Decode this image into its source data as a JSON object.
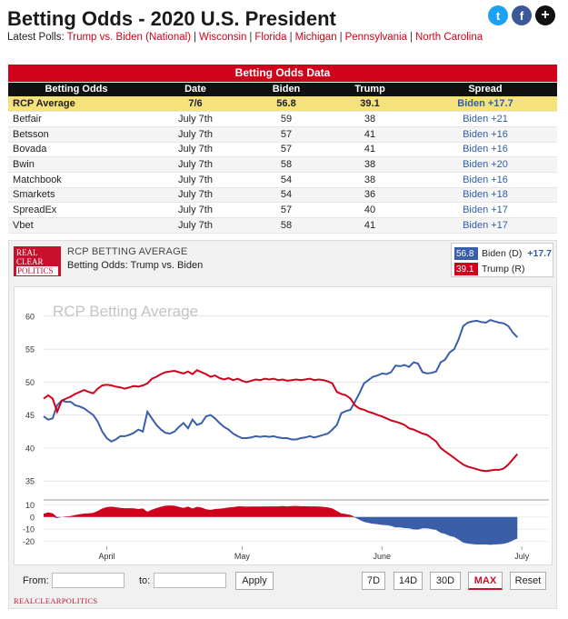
{
  "header": {
    "title": "Betting Odds - 2020 U.S. President",
    "latest_label": "Latest Polls:",
    "links": [
      "Trump vs. Biden (National)",
      "Wisconsin",
      "Florida",
      "Michigan",
      "Pennsylvania",
      "North Carolina"
    ],
    "social": [
      {
        "icon": "twitter-icon",
        "glyph": "t"
      },
      {
        "icon": "facebook-icon",
        "glyph": "f"
      },
      {
        "icon": "plus-icon",
        "glyph": "+"
      }
    ]
  },
  "table": {
    "caption": "Betting Odds Data",
    "headers": [
      "Betting Odds",
      "Date",
      "Biden",
      "Trump",
      "Spread"
    ],
    "average": {
      "source": "RCP Average",
      "date": "7/6",
      "biden": "56.8",
      "trump": "39.1",
      "spread": "Biden +17.7"
    },
    "rows": [
      {
        "source": "Betfair",
        "date": "July 7th",
        "biden": "59",
        "trump": "38",
        "spread": "Biden +21"
      },
      {
        "source": "Betsson",
        "date": "July 7th",
        "biden": "57",
        "trump": "41",
        "spread": "Biden +16"
      },
      {
        "source": "Bovada",
        "date": "July 7th",
        "biden": "57",
        "trump": "41",
        "spread": "Biden +16"
      },
      {
        "source": "Bwin",
        "date": "July 7th",
        "biden": "58",
        "trump": "38",
        "spread": "Biden +20"
      },
      {
        "source": "Matchbook",
        "date": "July 7th",
        "biden": "54",
        "trump": "38",
        "spread": "Biden +16"
      },
      {
        "source": "Smarkets",
        "date": "July 7th",
        "biden": "54",
        "trump": "36",
        "spread": "Biden +18"
      },
      {
        "source": "SpreadEx",
        "date": "July 7th",
        "biden": "57",
        "trump": "40",
        "spread": "Biden +17"
      },
      {
        "source": "Vbet",
        "date": "July 7th",
        "biden": "58",
        "trump": "41",
        "spread": "Biden +17"
      }
    ]
  },
  "panel": {
    "logo_line1": "REAL",
    "logo_line2": "CLEAR",
    "logo_line3": "POLITICS",
    "subtitle": "RCP BETTING AVERAGE",
    "title": "Betting Odds: Trump vs. Biden",
    "legend": [
      {
        "value": "56.8",
        "name": "Biden (D)",
        "spread": "+17.7",
        "color": "#3a5ea8"
      },
      {
        "value": "39.1",
        "name": "Trump (R)",
        "spread": "",
        "color": "#d0021b"
      }
    ],
    "watermark": "RCP Betting Average",
    "footer_brand": "REALCLEARPOLITICS"
  },
  "controls": {
    "from_label": "From:",
    "to_label": "to:",
    "apply_label": "Apply",
    "ranges": [
      "7D",
      "14D",
      "30D",
      "MAX"
    ],
    "active_range": "MAX",
    "reset_label": "Reset"
  },
  "chart_data": {
    "type": "line",
    "x_ticks": [
      "April",
      "May",
      "June",
      "July"
    ],
    "x_tick_pos": [
      14,
      44,
      75,
      106
    ],
    "y_ticks": [
      35,
      40,
      45,
      50,
      55,
      60
    ],
    "ylim": [
      32,
      63
    ],
    "spread_ticks": [
      10,
      0,
      -10,
      -20
    ],
    "spread_ylim": [
      -24,
      11
    ],
    "xlim": [
      0,
      112
    ],
    "series": [
      {
        "name": "Biden (D)",
        "color": "#3a5ea8",
        "points": [
          [
            0,
            44.8
          ],
          [
            1,
            44.3
          ],
          [
            2,
            44.5
          ],
          [
            3,
            46.5
          ],
          [
            4,
            47.2
          ],
          [
            5,
            47.0
          ],
          [
            6,
            47.0
          ],
          [
            7,
            46.5
          ],
          [
            8,
            46.3
          ],
          [
            9,
            46.0
          ],
          [
            10,
            45.5
          ],
          [
            11,
            45.0
          ],
          [
            12,
            44.0
          ],
          [
            13,
            42.5
          ],
          [
            14,
            41.5
          ],
          [
            15,
            41.0
          ],
          [
            16,
            41.3
          ],
          [
            17,
            41.8
          ],
          [
            18,
            41.8
          ],
          [
            19,
            42.0
          ],
          [
            20,
            42.3
          ],
          [
            21,
            42.8
          ],
          [
            22,
            42.5
          ],
          [
            23,
            45.5
          ],
          [
            24,
            44.5
          ],
          [
            25,
            43.5
          ],
          [
            26,
            42.8
          ],
          [
            27,
            42.3
          ],
          [
            28,
            42.2
          ],
          [
            29,
            42.5
          ],
          [
            30,
            43.2
          ],
          [
            31,
            43.8
          ],
          [
            32,
            43.0
          ],
          [
            33,
            44.3
          ],
          [
            34,
            43.5
          ],
          [
            35,
            43.8
          ],
          [
            36,
            44.8
          ],
          [
            37,
            45.0
          ],
          [
            38,
            44.5
          ],
          [
            39,
            43.8
          ],
          [
            40,
            43.2
          ],
          [
            41,
            42.8
          ],
          [
            42,
            42.2
          ],
          [
            43,
            41.8
          ],
          [
            44,
            41.5
          ],
          [
            45,
            41.5
          ],
          [
            46,
            41.6
          ],
          [
            47,
            41.8
          ],
          [
            48,
            41.7
          ],
          [
            49,
            41.8
          ],
          [
            50,
            41.7
          ],
          [
            51,
            41.8
          ],
          [
            52,
            41.6
          ],
          [
            53,
            41.5
          ],
          [
            54,
            41.5
          ],
          [
            55,
            41.3
          ],
          [
            56,
            41.3
          ],
          [
            57,
            41.5
          ],
          [
            58,
            41.6
          ],
          [
            59,
            41.8
          ],
          [
            60,
            41.6
          ],
          [
            61,
            41.8
          ],
          [
            62,
            42.0
          ],
          [
            63,
            42.2
          ],
          [
            64,
            42.8
          ],
          [
            65,
            43.5
          ],
          [
            66,
            45.3
          ],
          [
            67,
            45.6
          ],
          [
            68,
            45.8
          ],
          [
            69,
            47.0
          ],
          [
            70,
            48.3
          ],
          [
            71,
            49.8
          ],
          [
            72,
            50.3
          ],
          [
            73,
            50.8
          ],
          [
            74,
            51.0
          ],
          [
            75,
            51.3
          ],
          [
            76,
            51.2
          ],
          [
            77,
            51.5
          ],
          [
            78,
            52.5
          ],
          [
            79,
            52.4
          ],
          [
            80,
            52.6
          ],
          [
            81,
            52.3
          ],
          [
            82,
            53.0
          ],
          [
            83,
            52.8
          ],
          [
            84,
            51.5
          ],
          [
            85,
            51.3
          ],
          [
            86,
            51.4
          ],
          [
            87,
            51.6
          ],
          [
            88,
            53.0
          ],
          [
            89,
            53.4
          ],
          [
            90,
            54.5
          ],
          [
            91,
            55.0
          ],
          [
            92,
            56.5
          ],
          [
            93,
            58.5
          ],
          [
            94,
            59.0
          ],
          [
            95,
            59.2
          ],
          [
            96,
            59.3
          ],
          [
            97,
            59.1
          ],
          [
            98,
            59.0
          ],
          [
            99,
            59.4
          ],
          [
            100,
            59.2
          ],
          [
            101,
            59.0
          ],
          [
            102,
            58.9
          ],
          [
            103,
            58.5
          ],
          [
            104,
            57.5
          ],
          [
            105,
            56.8
          ]
        ]
      },
      {
        "name": "Trump (R)",
        "color": "#d0021b",
        "points": [
          [
            0,
            47.5
          ],
          [
            1,
            48.0
          ],
          [
            2,
            47.5
          ],
          [
            3,
            45.5
          ],
          [
            4,
            47.2
          ],
          [
            5,
            47.5
          ],
          [
            6,
            47.8
          ],
          [
            7,
            48.2
          ],
          [
            8,
            48.5
          ],
          [
            9,
            48.8
          ],
          [
            10,
            48.5
          ],
          [
            11,
            48.3
          ],
          [
            12,
            49.0
          ],
          [
            13,
            49.5
          ],
          [
            14,
            49.6
          ],
          [
            15,
            49.5
          ],
          [
            16,
            49.3
          ],
          [
            17,
            49.2
          ],
          [
            18,
            49.0
          ],
          [
            19,
            49.2
          ],
          [
            20,
            49.4
          ],
          [
            21,
            49.3
          ],
          [
            22,
            49.5
          ],
          [
            23,
            49.8
          ],
          [
            24,
            50.5
          ],
          [
            25,
            50.8
          ],
          [
            26,
            51.2
          ],
          [
            27,
            51.5
          ],
          [
            28,
            51.6
          ],
          [
            29,
            51.7
          ],
          [
            30,
            51.5
          ],
          [
            31,
            51.3
          ],
          [
            32,
            51.6
          ],
          [
            33,
            51.2
          ],
          [
            34,
            51.8
          ],
          [
            35,
            51.5
          ],
          [
            36,
            51.2
          ],
          [
            37,
            50.8
          ],
          [
            38,
            51.0
          ],
          [
            39,
            50.6
          ],
          [
            40,
            50.4
          ],
          [
            41,
            50.6
          ],
          [
            42,
            50.3
          ],
          [
            43,
            50.5
          ],
          [
            44,
            50.2
          ],
          [
            45,
            50.0
          ],
          [
            46,
            50.2
          ],
          [
            47,
            50.4
          ],
          [
            48,
            50.3
          ],
          [
            49,
            50.5
          ],
          [
            50,
            50.4
          ],
          [
            51,
            50.5
          ],
          [
            52,
            50.3
          ],
          [
            53,
            50.4
          ],
          [
            54,
            50.2
          ],
          [
            55,
            50.3
          ],
          [
            56,
            50.4
          ],
          [
            57,
            50.3
          ],
          [
            58,
            50.4
          ],
          [
            59,
            50.5
          ],
          [
            60,
            50.3
          ],
          [
            61,
            50.4
          ],
          [
            62,
            50.3
          ],
          [
            63,
            50.1
          ],
          [
            64,
            49.8
          ],
          [
            65,
            48.5
          ],
          [
            66,
            48.2
          ],
          [
            67,
            48.0
          ],
          [
            68,
            47.5
          ],
          [
            69,
            46.5
          ],
          [
            70,
            46.0
          ],
          [
            71,
            45.8
          ],
          [
            72,
            45.5
          ],
          [
            73,
            45.3
          ],
          [
            74,
            45.0
          ],
          [
            75,
            44.8
          ],
          [
            76,
            44.5
          ],
          [
            77,
            44.2
          ],
          [
            78,
            44.0
          ],
          [
            79,
            43.8
          ],
          [
            80,
            43.5
          ],
          [
            81,
            43.0
          ],
          [
            82,
            42.8
          ],
          [
            83,
            42.5
          ],
          [
            84,
            42.2
          ],
          [
            85,
            42.0
          ],
          [
            86,
            41.5
          ],
          [
            87,
            41.0
          ],
          [
            88,
            40.0
          ],
          [
            89,
            39.5
          ],
          [
            90,
            39.0
          ],
          [
            91,
            38.5
          ],
          [
            92,
            38.0
          ],
          [
            93,
            37.5
          ],
          [
            94,
            37.2
          ],
          [
            95,
            37.0
          ],
          [
            96,
            36.8
          ],
          [
            97,
            36.6
          ],
          [
            98,
            36.5
          ],
          [
            99,
            36.6
          ],
          [
            100,
            36.7
          ],
          [
            101,
            36.7
          ],
          [
            102,
            36.9
          ],
          [
            103,
            37.5
          ],
          [
            104,
            38.3
          ],
          [
            105,
            39.1
          ]
        ]
      }
    ]
  }
}
